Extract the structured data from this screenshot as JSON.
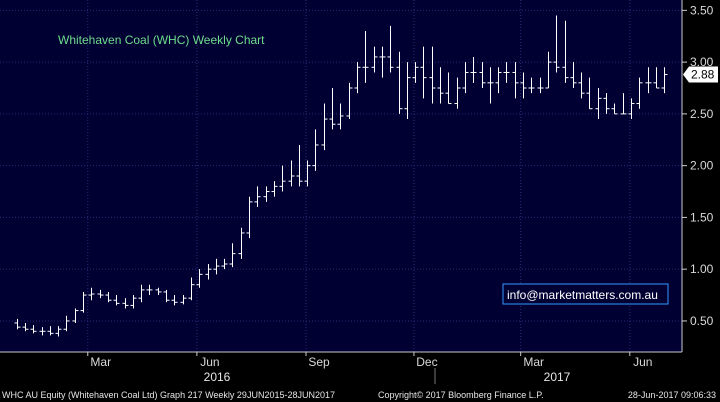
{
  "chart_data": {
    "type": "line",
    "style": "ohlc-bars",
    "title": "Whitehaven Coal (WHC) Weekly Chart",
    "annotation": "info@marketmatters.com.au",
    "last_value_label": "2.88",
    "ylim": [
      0.2,
      3.6
    ],
    "y_ticks": [
      "0.50",
      "1.00",
      "1.50",
      "2.00",
      "2.50",
      "3.00",
      "3.50"
    ],
    "x_ticks": [
      "Mar",
      "Jun",
      "Sep",
      "Dec",
      "Mar",
      "Jun"
    ],
    "years": [
      "2016",
      "2017"
    ],
    "grid": true,
    "colors": {
      "background": "#000000",
      "plot": "#000033",
      "bars": "#ffffff",
      "grid": "#2a2a78",
      "title": "#6fdc8c",
      "annotation_border": "#3399ff"
    },
    "x": [
      "2016-01-01",
      "2016-01-08",
      "2016-01-15",
      "2016-01-22",
      "2016-01-29",
      "2016-02-05",
      "2016-02-12",
      "2016-02-19",
      "2016-02-26",
      "2016-03-04",
      "2016-03-11",
      "2016-03-18",
      "2016-03-25",
      "2016-04-01",
      "2016-04-08",
      "2016-04-15",
      "2016-04-22",
      "2016-04-29",
      "2016-05-06",
      "2016-05-13",
      "2016-05-20",
      "2016-05-27",
      "2016-06-03",
      "2016-06-10",
      "2016-06-17",
      "2016-06-24",
      "2016-07-01",
      "2016-07-08",
      "2016-07-15",
      "2016-07-22",
      "2016-07-29",
      "2016-08-05",
      "2016-08-12",
      "2016-08-19",
      "2016-08-26",
      "2016-09-02",
      "2016-09-09",
      "2016-09-16",
      "2016-09-23",
      "2016-09-30",
      "2016-10-07",
      "2016-10-14",
      "2016-10-21",
      "2016-10-28",
      "2016-11-04",
      "2016-11-11",
      "2016-11-18",
      "2016-11-25",
      "2016-12-02",
      "2016-12-09",
      "2016-12-16",
      "2016-12-23",
      "2016-12-30",
      "2017-01-06",
      "2017-01-13",
      "2017-01-20",
      "2017-01-27",
      "2017-02-03",
      "2017-02-10",
      "2017-02-17",
      "2017-02-24",
      "2017-03-03",
      "2017-03-10",
      "2017-03-17",
      "2017-03-24",
      "2017-03-31",
      "2017-04-07",
      "2017-04-14",
      "2017-04-21",
      "2017-04-28",
      "2017-05-05",
      "2017-05-12",
      "2017-05-19",
      "2017-05-26",
      "2017-06-02",
      "2017-06-09",
      "2017-06-16",
      "2017-06-23",
      "2017-06-30"
    ],
    "series": [
      {
        "open": [
          0.48,
          0.44,
          0.42,
          0.4,
          0.4,
          0.38,
          0.42,
          0.5,
          0.6,
          0.75,
          0.76,
          0.75,
          0.7,
          0.67,
          0.65,
          0.72,
          0.8,
          0.8,
          0.78,
          0.7,
          0.68,
          0.72,
          0.85,
          0.95,
          1.0,
          1.03,
          1.05,
          1.15,
          1.35,
          1.65,
          1.7,
          1.75,
          1.8,
          1.85,
          1.9,
          1.85,
          2.0,
          2.2,
          2.45,
          2.4,
          2.48,
          2.75,
          2.95,
          2.95,
          3.05,
          3.05,
          2.95,
          2.55,
          2.85,
          2.95,
          2.85,
          2.75,
          2.7,
          2.6,
          2.75,
          2.9,
          2.9,
          2.8,
          2.8,
          2.9,
          2.9,
          2.8,
          2.75,
          2.75,
          2.75,
          3.0,
          2.95,
          2.85,
          2.8,
          2.7,
          2.55,
          2.65,
          2.55,
          2.5,
          2.5,
          2.6,
          2.8,
          2.8,
          2.75
        ],
        "high": [
          0.52,
          0.48,
          0.46,
          0.44,
          0.45,
          0.45,
          0.55,
          0.62,
          0.78,
          0.82,
          0.8,
          0.78,
          0.75,
          0.72,
          0.75,
          0.85,
          0.85,
          0.82,
          0.8,
          0.75,
          0.75,
          0.92,
          1.0,
          1.05,
          1.1,
          1.1,
          1.25,
          1.4,
          1.7,
          1.8,
          1.8,
          1.85,
          2.0,
          2.05,
          2.2,
          2.05,
          2.35,
          2.6,
          2.75,
          2.6,
          2.8,
          3.0,
          3.3,
          3.15,
          3.15,
          3.35,
          3.1,
          3.0,
          3.0,
          3.15,
          3.15,
          2.95,
          2.9,
          2.85,
          3.0,
          3.05,
          3.0,
          2.95,
          2.95,
          3.0,
          3.0,
          2.9,
          2.85,
          2.85,
          3.1,
          3.45,
          3.4,
          3.0,
          2.9,
          2.85,
          2.75,
          2.7,
          2.6,
          2.7,
          2.65,
          2.85,
          2.95,
          2.95,
          2.95
        ],
        "low": [
          0.42,
          0.4,
          0.38,
          0.36,
          0.36,
          0.35,
          0.4,
          0.48,
          0.58,
          0.7,
          0.72,
          0.68,
          0.65,
          0.62,
          0.62,
          0.68,
          0.75,
          0.75,
          0.68,
          0.65,
          0.66,
          0.7,
          0.82,
          0.9,
          0.95,
          1.0,
          1.02,
          1.1,
          1.3,
          1.6,
          1.65,
          1.7,
          1.75,
          1.8,
          1.8,
          1.8,
          1.95,
          2.15,
          2.35,
          2.35,
          2.45,
          2.7,
          2.8,
          2.9,
          2.85,
          2.9,
          2.5,
          2.45,
          2.8,
          2.65,
          2.6,
          2.6,
          2.6,
          2.55,
          2.7,
          2.8,
          2.75,
          2.6,
          2.7,
          2.8,
          2.65,
          2.65,
          2.7,
          2.7,
          2.75,
          2.9,
          2.8,
          2.75,
          2.65,
          2.55,
          2.45,
          2.5,
          2.5,
          2.5,
          2.45,
          2.55,
          2.7,
          2.75,
          2.7
        ],
        "close": [
          0.44,
          0.42,
          0.4,
          0.4,
          0.38,
          0.42,
          0.5,
          0.6,
          0.75,
          0.76,
          0.75,
          0.7,
          0.67,
          0.65,
          0.72,
          0.8,
          0.8,
          0.78,
          0.7,
          0.68,
          0.72,
          0.85,
          0.95,
          1.0,
          1.03,
          1.05,
          1.15,
          1.35,
          1.65,
          1.7,
          1.75,
          1.8,
          1.85,
          1.9,
          1.85,
          2.0,
          2.2,
          2.45,
          2.4,
          2.48,
          2.75,
          2.95,
          2.95,
          3.05,
          3.05,
          2.95,
          2.55,
          2.85,
          2.95,
          2.85,
          2.75,
          2.7,
          2.6,
          2.75,
          2.9,
          2.9,
          2.8,
          2.8,
          2.9,
          2.9,
          2.8,
          2.75,
          2.75,
          2.75,
          3.0,
          2.95,
          2.85,
          2.8,
          2.7,
          2.55,
          2.65,
          2.55,
          2.5,
          2.5,
          2.6,
          2.8,
          2.8,
          2.75,
          2.88
        ]
      }
    ]
  },
  "footer": {
    "left": "WHC AU Equity (Whitehaven Coal Ltd) Graph 217  Weekly 29JUN2015-28JUN2017",
    "center": "Copyright© 2017 Bloomberg Finance L.P.",
    "right": "28-Jun-2017 09:06:33"
  }
}
